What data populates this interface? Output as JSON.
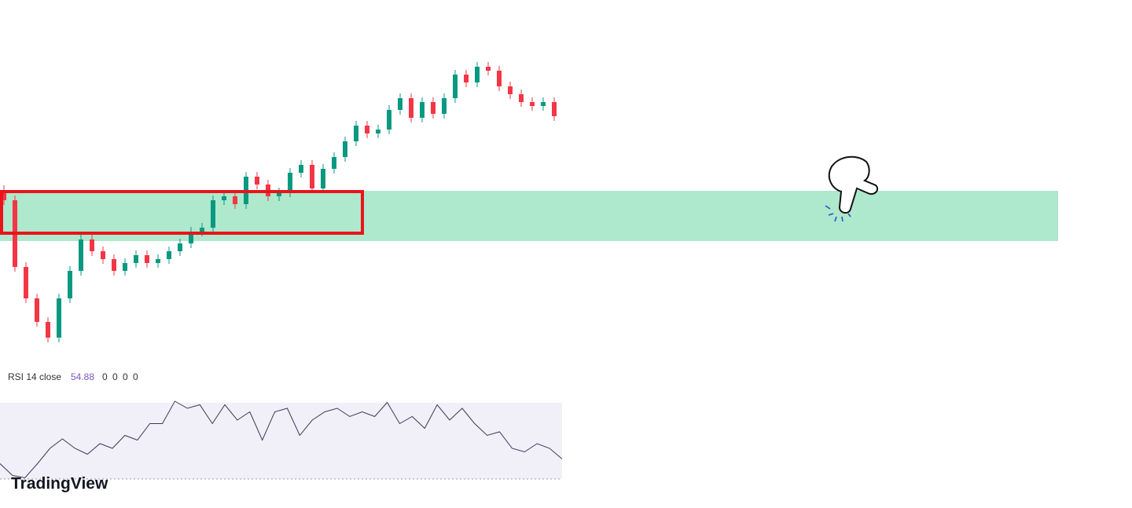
{
  "chart_data": [
    {
      "type": "candlestick",
      "up_color": "#089981",
      "down_color": "#f23645",
      "ylim": [
        0,
        100
      ],
      "open": [
        52,
        48.75,
        27.5,
        17.5,
        10,
        5,
        17.5,
        26.25,
        36.25,
        32.5,
        30,
        26.25,
        28.75,
        31.25,
        28.75,
        30,
        32.5,
        35,
        38.75,
        40,
        48.75,
        50,
        47.5,
        56.25,
        53.75,
        50,
        51.25,
        57.5,
        60,
        52.5,
        58.75,
        62.5,
        67.5,
        72.5,
        70,
        71.25,
        77.5,
        81.25,
        75,
        80,
        76.25,
        81.25,
        88.75,
        86.25,
        91.25,
        90,
        85,
        82.5,
        80,
        78.75,
        80
      ],
      "high": [
        53.5,
        50.25,
        29,
        19,
        11.5,
        19,
        27.75,
        37.75,
        37.75,
        34,
        31.5,
        30.25,
        32.75,
        32.75,
        31.5,
        34,
        36.5,
        40.25,
        41.5,
        50.25,
        51.5,
        51.5,
        57.75,
        57.75,
        55.25,
        52.75,
        59,
        61.5,
        61.5,
        60.25,
        64,
        69,
        74,
        74,
        72.75,
        79,
        82.75,
        82.75,
        81.5,
        81.5,
        82.75,
        90.25,
        90.25,
        92.75,
        92.75,
        91.5,
        86.5,
        84,
        81.5,
        81.5,
        81.5
      ],
      "low": [
        47.25,
        26,
        16,
        8.5,
        3.5,
        3.5,
        16,
        24.75,
        31,
        28.5,
        24.75,
        24.75,
        27.25,
        27.25,
        27.25,
        28.5,
        31,
        33.5,
        37.25,
        38.5,
        47.25,
        46,
        46,
        52.25,
        48.5,
        48.5,
        49.75,
        56,
        51,
        51,
        57.25,
        61,
        66,
        68.5,
        68.5,
        69.75,
        76,
        73.5,
        73.5,
        74.75,
        74.75,
        79.75,
        84.75,
        84.75,
        88.5,
        83.5,
        81,
        78.5,
        77.25,
        77.25,
        74
      ],
      "close": [
        48.75,
        27.5,
        17.5,
        10,
        5,
        17.5,
        26.25,
        36.25,
        32.5,
        30,
        26.25,
        28.75,
        31.25,
        28.75,
        30,
        32.5,
        35,
        38.75,
        40,
        48.75,
        50,
        47.5,
        56.25,
        53.75,
        50,
        51.25,
        57.5,
        60,
        52.5,
        58.75,
        62.5,
        67.5,
        72.5,
        70,
        71.25,
        77.5,
        81.25,
        75,
        80,
        76.25,
        81.25,
        88.75,
        86.25,
        91.25,
        90,
        85,
        82.5,
        80,
        78.75,
        80,
        75.5
      ]
    },
    {
      "type": "line",
      "title": "RSI 14 close",
      "readouts": [
        "54.88",
        "0",
        "0",
        "0",
        "0"
      ],
      "color": "#3b3a5a",
      "ylim": [
        15,
        85
      ],
      "values": [
        30,
        20,
        18,
        30,
        43,
        51,
        43,
        38,
        47,
        43,
        54,
        50,
        64,
        64,
        83,
        77,
        80,
        64,
        80,
        67,
        74,
        50,
        74,
        77,
        54,
        67,
        74,
        77,
        70,
        74,
        70,
        82,
        64,
        70,
        60,
        80,
        67,
        77,
        64,
        54,
        57,
        43,
        40,
        47,
        43,
        34
      ]
    }
  ],
  "watermark": "TradingView"
}
